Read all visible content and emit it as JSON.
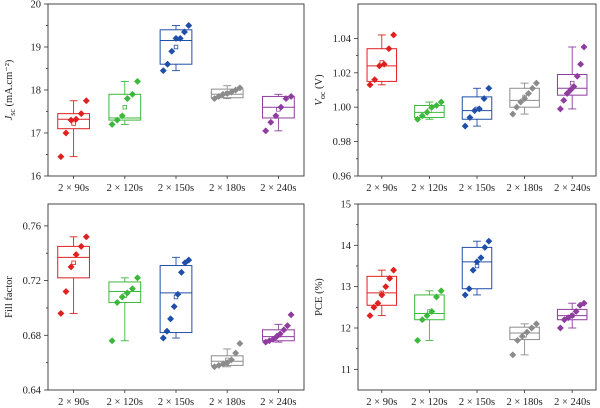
{
  "chart_data": [
    {
      "type": "box",
      "panel": "a",
      "ylabel_main": "J",
      "ylabel_sub": "sc",
      "ylabel_rest": " (mA.cm⁻²)",
      "ylim": [
        16,
        20
      ],
      "yticks": [
        "16",
        "17",
        "18",
        "19",
        "20"
      ],
      "ytick_values": [
        16,
        17,
        18,
        19,
        20
      ],
      "categories": [
        "2 × 90s",
        "2 × 120s",
        "2 × 150s",
        "2 × 180s",
        "2 × 240s"
      ],
      "series": [
        {
          "color": "#e02020",
          "points": [
            16.45,
            17.0,
            17.3,
            17.32,
            17.45,
            17.75
          ],
          "q1": 17.1,
          "median": 17.32,
          "q3": 17.45,
          "mean": 17.22,
          "whisker_low": 16.45,
          "whisker_high": 17.75
        },
        {
          "color": "#3cb83c",
          "points": [
            17.2,
            17.3,
            17.4,
            17.8,
            17.9,
            18.2
          ],
          "q1": 17.3,
          "median": 17.35,
          "q3": 17.9,
          "mean": 17.6,
          "whisker_low": 17.2,
          "whisker_high": 18.2
        },
        {
          "color": "#1f4fa8",
          "points": [
            18.45,
            18.6,
            18.9,
            19.2,
            19.2,
            19.35,
            19.5
          ],
          "q1": 18.6,
          "median": 19.15,
          "q3": 19.4,
          "mean": 19.0,
          "whisker_low": 18.45,
          "whisker_high": 19.5
        },
        {
          "color": "#8c8c8c",
          "points": [
            17.8,
            17.85,
            17.9,
            17.92,
            17.95,
            18.0,
            18.05
          ],
          "q1": 17.82,
          "median": 17.9,
          "q3": 18.02,
          "mean": 17.92,
          "whisker_low": 17.8,
          "whisker_high": 18.1
        },
        {
          "color": "#8e3c9e",
          "points": [
            17.05,
            17.25,
            17.4,
            17.6,
            17.8,
            17.85
          ],
          "q1": 17.35,
          "median": 17.6,
          "q3": 17.85,
          "mean": 17.55,
          "whisker_low": 17.05,
          "whisker_high": 17.9
        }
      ]
    },
    {
      "type": "box",
      "panel": "b",
      "ylabel_main": "V",
      "ylabel_sub": "oc",
      "ylabel_rest": " (V)",
      "ylim": [
        0.96,
        1.06
      ],
      "yticks": [
        "0.96",
        "0.98",
        "1.00",
        "1.02",
        "1.04"
      ],
      "ytick_values": [
        0.96,
        0.98,
        1.0,
        1.02,
        1.04
      ],
      "categories": [
        "2 × 90s",
        "2 × 120s",
        "2 × 150s",
        "2 × 180s",
        "2 × 240s"
      ],
      "series": [
        {
          "color": "#e02020",
          "points": [
            1.013,
            1.016,
            1.024,
            1.025,
            1.034,
            1.042
          ],
          "q1": 1.015,
          "median": 1.024,
          "q3": 1.034,
          "mean": 1.026,
          "whisker_low": 1.013,
          "whisker_high": 1.042
        },
        {
          "color": "#3cb83c",
          "points": [
            0.993,
            0.995,
            0.997,
            1.0,
            1.001,
            1.003
          ],
          "q1": 0.994,
          "median": 0.997,
          "q3": 1.001,
          "mean": 0.998,
          "whisker_low": 0.993,
          "whisker_high": 1.003
        },
        {
          "color": "#1f4fa8",
          "points": [
            0.989,
            0.994,
            0.998,
            0.999,
            1.005,
            1.011
          ],
          "q1": 0.993,
          "median": 0.998,
          "q3": 1.006,
          "mean": 0.999,
          "whisker_low": 0.989,
          "whisker_high": 1.011
        },
        {
          "color": "#8c8c8c",
          "points": [
            0.996,
            1.0,
            1.003,
            1.005,
            1.008,
            1.011,
            1.014
          ],
          "q1": 1.0,
          "median": 1.004,
          "q3": 1.011,
          "mean": 1.006,
          "whisker_low": 0.996,
          "whisker_high": 1.014
        },
        {
          "color": "#8e3c9e",
          "points": [
            0.999,
            1.004,
            1.008,
            1.01,
            1.012,
            1.018,
            1.025,
            1.035
          ],
          "q1": 1.007,
          "median": 1.011,
          "q3": 1.019,
          "mean": 1.014,
          "whisker_low": 0.999,
          "whisker_high": 1.035
        }
      ]
    },
    {
      "type": "box",
      "panel": "c",
      "ylabel_main": "Fill factor",
      "ylabel_sub": "",
      "ylabel_rest": "",
      "ylim": [
        0.64,
        0.776
      ],
      "yticks": [
        "0.64",
        "0.68",
        "0.72",
        "0.76"
      ],
      "ytick_values": [
        0.64,
        0.68,
        0.72,
        0.76
      ],
      "categories": [
        "2 × 90s",
        "2 × 120s",
        "2 × 150s",
        "2 × 180s",
        "2 × 240s"
      ],
      "series": [
        {
          "color": "#e02020",
          "points": [
            0.696,
            0.712,
            0.73,
            0.739,
            0.745,
            0.752
          ],
          "q1": 0.722,
          "median": 0.737,
          "q3": 0.745,
          "mean": 0.733,
          "whisker_low": 0.696,
          "whisker_high": 0.752
        },
        {
          "color": "#3cb83c",
          "points": [
            0.676,
            0.704,
            0.708,
            0.711,
            0.714,
            0.722
          ],
          "q1": 0.704,
          "median": 0.712,
          "q3": 0.719,
          "mean": 0.709,
          "whisker_low": 0.676,
          "whisker_high": 0.722
        },
        {
          "color": "#1f4fa8",
          "points": [
            0.678,
            0.683,
            0.692,
            0.701,
            0.71,
            0.726,
            0.733,
            0.735
          ],
          "q1": 0.682,
          "median": 0.711,
          "q3": 0.731,
          "mean": 0.708,
          "whisker_low": 0.678,
          "whisker_high": 0.737
        },
        {
          "color": "#8c8c8c",
          "points": [
            0.657,
            0.658,
            0.659,
            0.66,
            0.662,
            0.667,
            0.674
          ],
          "q1": 0.658,
          "median": 0.661,
          "q3": 0.665,
          "mean": 0.662,
          "whisker_low": 0.657,
          "whisker_high": 0.67
        },
        {
          "color": "#8e3c9e",
          "points": [
            0.675,
            0.676,
            0.677,
            0.679,
            0.681,
            0.684,
            0.687,
            0.695
          ],
          "q1": 0.676,
          "median": 0.679,
          "q3": 0.684,
          "mean": 0.68,
          "whisker_low": 0.675,
          "whisker_high": 0.688
        }
      ]
    },
    {
      "type": "box",
      "panel": "d",
      "ylabel_main": "PCE (%)",
      "ylabel_sub": "",
      "ylabel_rest": "",
      "ylim": [
        10.5,
        15
      ],
      "yticks": [
        "11",
        "12",
        "13",
        "14",
        "15"
      ],
      "ytick_values": [
        11,
        12,
        13,
        14,
        15
      ],
      "categories": [
        "2 × 90s",
        "2 × 120s",
        "2 × 150s",
        "2 × 180s",
        "2 × 240s"
      ],
      "series": [
        {
          "color": "#e02020",
          "points": [
            12.3,
            12.5,
            12.6,
            12.8,
            13.0,
            13.2,
            13.4
          ],
          "q1": 12.55,
          "median": 12.85,
          "q3": 13.25,
          "mean": 12.85,
          "whisker_low": 12.3,
          "whisker_high": 13.4
        },
        {
          "color": "#3cb83c",
          "points": [
            11.7,
            12.2,
            12.3,
            12.4,
            12.75,
            12.9
          ],
          "q1": 12.2,
          "median": 12.35,
          "q3": 12.8,
          "mean": 12.4,
          "whisker_low": 11.7,
          "whisker_high": 12.9
        },
        {
          "color": "#1f4fa8",
          "points": [
            12.8,
            12.95,
            13.4,
            13.6,
            13.7,
            13.95,
            14.1
          ],
          "q1": 12.95,
          "median": 13.6,
          "q3": 13.95,
          "mean": 13.5,
          "whisker_low": 12.8,
          "whisker_high": 14.1
        },
        {
          "color": "#8c8c8c",
          "points": [
            11.35,
            11.7,
            11.8,
            11.9,
            12.0,
            12.1
          ],
          "q1": 11.72,
          "median": 11.88,
          "q3": 12.02,
          "mean": 11.82,
          "whisker_low": 11.35,
          "whisker_high": 12.1
        },
        {
          "color": "#8e3c9e",
          "points": [
            12.0,
            12.2,
            12.25,
            12.3,
            12.4,
            12.55,
            12.6
          ],
          "q1": 12.2,
          "median": 12.3,
          "q3": 12.45,
          "mean": 12.3,
          "whisker_low": 12.0,
          "whisker_high": 12.6
        }
      ]
    }
  ]
}
